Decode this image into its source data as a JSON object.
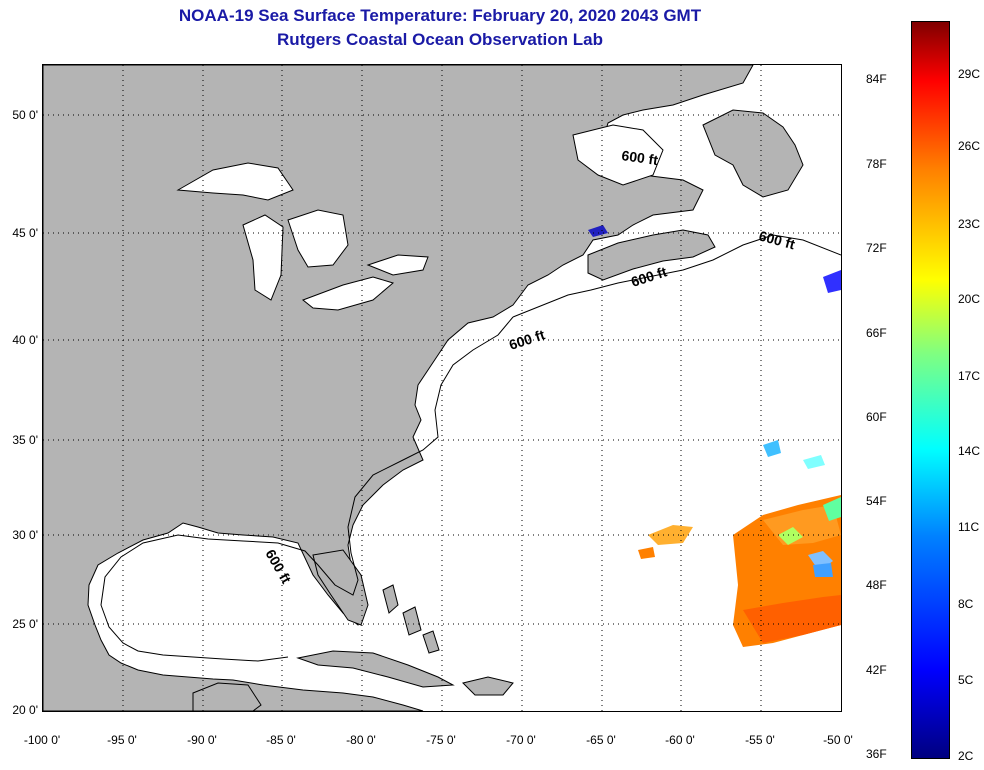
{
  "header": {
    "title_line1": "NOAA-19 Sea Surface Temperature:  February 20, 2020 2043 GMT",
    "title_line2": "Rutgers Coastal Ocean Observation Lab"
  },
  "map": {
    "lon_labels": [
      "-100 0'",
      "-95 0'",
      "-90 0'",
      "-85 0'",
      "-80 0'",
      "-75 0'",
      "-70 0'",
      "-65 0'",
      "-60 0'",
      "-55 0'",
      "-50 0'"
    ],
    "lat_labels": [
      "50 0'",
      "45 0'",
      "40 0'",
      "35 0'",
      "30 0'",
      "25 0'",
      "20 0'"
    ],
    "contour_labels": [
      "600 ft",
      "600 ft",
      "600 ft",
      "600 ft",
      "600 ft"
    ],
    "land_color": "#b4b4b4",
    "ocean_color": "#ffffff"
  },
  "colorbar": {
    "f_labels": [
      "84F",
      "78F",
      "72F",
      "66F",
      "60F",
      "54F",
      "48F",
      "42F",
      "36F"
    ],
    "c_labels": [
      "29C",
      "26C",
      "23C",
      "20C",
      "17C",
      "14C",
      "11C",
      "8C",
      "5C",
      "2C"
    ]
  }
}
